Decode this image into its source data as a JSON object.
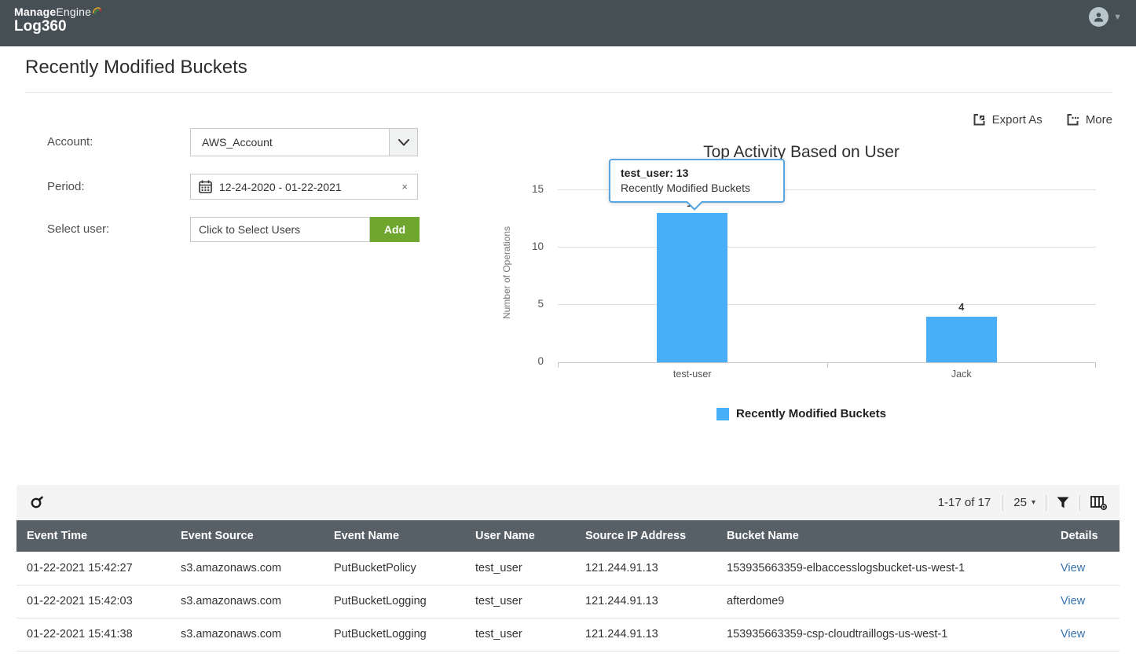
{
  "header": {
    "brand_top_bold": "Manage",
    "brand_top_light": "Engine",
    "brand_bottom": "Log360"
  },
  "page": {
    "title": "Recently Modified Buckets"
  },
  "filters": {
    "account_label": "Account:",
    "account_value": "AWS_Account",
    "period_label": "Period:",
    "period_value": "12-24-2020 - 01-22-2021",
    "user_label": "Select user:",
    "user_placeholder": "Click to Select Users",
    "add_label": "Add"
  },
  "actions": {
    "export_label": "Export As",
    "more_label": "More"
  },
  "icons": {
    "clear_x": "×",
    "caret_down": "▾"
  },
  "chart_data": {
    "type": "bar",
    "title": "Top Activity Based on User",
    "categories": [
      "test-user",
      "Jack"
    ],
    "values": [
      13,
      4
    ],
    "series_name": "Recently Modified Buckets",
    "xlabel": "",
    "ylabel": "Number of Operations",
    "yticks": [
      0,
      5,
      10,
      15
    ],
    "ylim": [
      0,
      15.8
    ],
    "grid": "horizontal",
    "legend_position": "bottom",
    "bar_color": "#47aef7",
    "tooltip": {
      "title": "test_user: 13",
      "subtitle": "Recently Modified Buckets"
    },
    "legend_label": "Recently Modified Buckets"
  },
  "table": {
    "pagination": "1-17 of 17",
    "page_size": "25",
    "columns": [
      "Event Time",
      "Event Source",
      "Event Name",
      "User Name",
      "Source IP Address",
      "Bucket Name",
      "Details"
    ],
    "rows": [
      {
        "event_time": "01-22-2021 15:42:27",
        "event_source": "s3.amazonaws.com",
        "event_name": "PutBucketPolicy",
        "user_name": "test_user",
        "source_ip": "121.244.91.13",
        "bucket_name": "153935663359-elbaccesslogsbucket-us-west-1",
        "details": "View"
      },
      {
        "event_time": "01-22-2021 15:42:03",
        "event_source": "s3.amazonaws.com",
        "event_name": "PutBucketLogging",
        "user_name": "test_user",
        "source_ip": "121.244.91.13",
        "bucket_name": "afterdome9",
        "details": "View"
      },
      {
        "event_time": "01-22-2021 15:41:38",
        "event_source": "s3.amazonaws.com",
        "event_name": "PutBucketLogging",
        "user_name": "test_user",
        "source_ip": "121.244.91.13",
        "bucket_name": "153935663359-csp-cloudtraillogs-us-west-1",
        "details": "View"
      }
    ]
  }
}
